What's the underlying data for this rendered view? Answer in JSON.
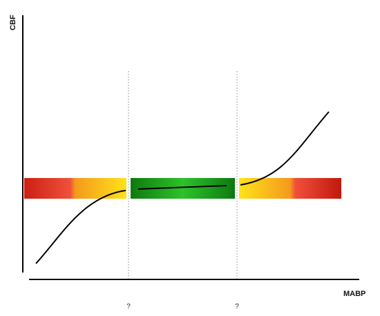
{
  "axes": {
    "y_label": "CBF",
    "x_label": "MABP"
  },
  "markers": [
    "?",
    "?"
  ]
}
